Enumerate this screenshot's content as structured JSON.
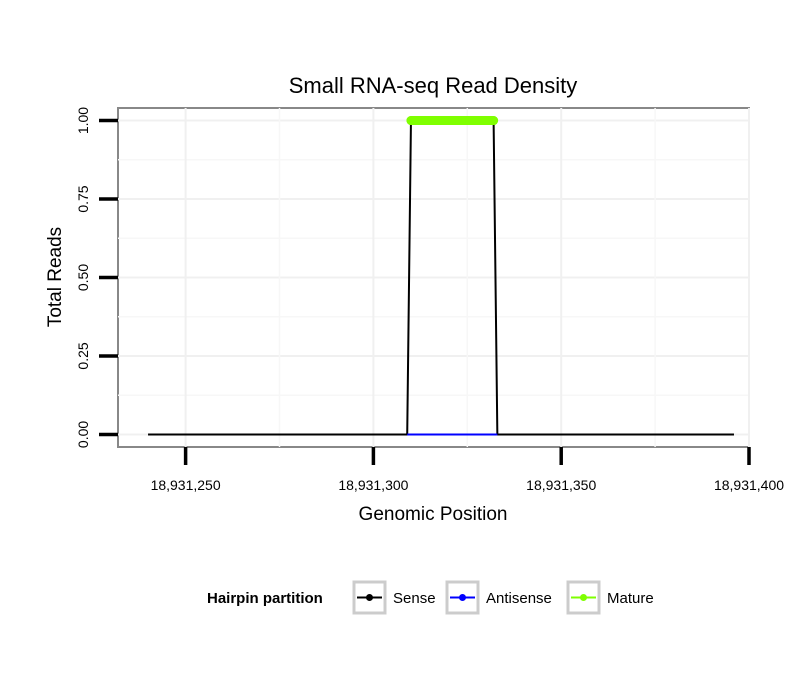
{
  "chart_data": {
    "type": "line",
    "title": "Small RNA-seq Read Density",
    "xlabel": "Genomic Position",
    "ylabel": "Total Reads",
    "xlim": [
      18931232,
      18931400
    ],
    "ylim": [
      -0.04,
      1.04
    ],
    "x_ticks": [
      18931250,
      18931300,
      18931350,
      18931400
    ],
    "x_tick_labels": [
      "18,931,250",
      "18,931,300",
      "18,931,350",
      "18,931,400"
    ],
    "y_ticks": [
      0,
      0.25,
      0.5,
      0.75,
      1
    ],
    "y_tick_labels": [
      "0.00",
      "0.25",
      "0.50",
      "0.75",
      "1.00"
    ],
    "grid": true,
    "series": [
      {
        "name": "Sense",
        "color": "#000000",
        "points": [
          [
            18931240,
            0
          ],
          [
            18931309,
            0
          ],
          [
            18931310,
            1
          ],
          [
            18931332,
            1
          ],
          [
            18931333,
            0
          ],
          [
            18931396,
            0
          ]
        ]
      },
      {
        "name": "Antisense",
        "color": "#0000ff",
        "points": [
          [
            18931309,
            0
          ],
          [
            18931333,
            0
          ]
        ]
      },
      {
        "name": "Mature",
        "color": "#7fff00",
        "points": [
          [
            18931310,
            1
          ],
          [
            18931332,
            1
          ]
        ]
      }
    ],
    "legend": {
      "title": "Hairpin partition",
      "position": "bottom",
      "entries": [
        {
          "label": "Sense",
          "color": "#000000"
        },
        {
          "label": "Antisense",
          "color": "#0000ff"
        },
        {
          "label": "Mature",
          "color": "#7fff00"
        }
      ]
    }
  }
}
